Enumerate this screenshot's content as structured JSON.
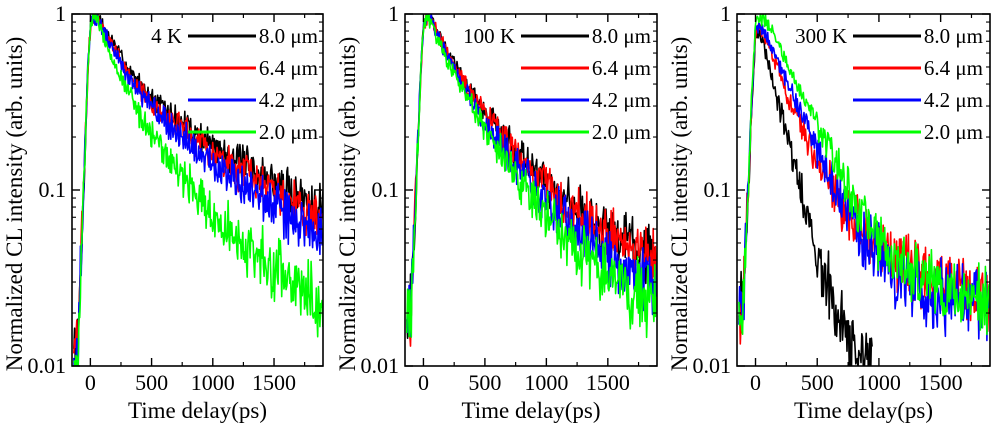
{
  "chart_data": [
    {
      "type": "line",
      "title": "",
      "annotation": "4 K",
      "xlabel": "Time delay(ps)",
      "ylabel": "Normalized CL intensity (arb. units)",
      "xlim": [
        -150,
        1900
      ],
      "ylim": [
        0.01,
        1
      ],
      "yscale": "log",
      "xticks": [
        0,
        500,
        1000,
        1500
      ],
      "xtick_labels": [
        "0",
        "500",
        "1000",
        "1500"
      ],
      "yticks": [
        0.01,
        0.1,
        1
      ],
      "ytick_labels": [
        "0.01",
        "0.1",
        "1"
      ],
      "legend_position": "top-right",
      "series": [
        {
          "name": "8.0 μm",
          "color": "#000000",
          "x": [
            -100,
            -20,
            0,
            30,
            60,
            150,
            300,
            500,
            750,
            1000,
            1250,
            1500,
            1750,
            1900
          ],
          "y": [
            0.013,
            0.5,
            0.85,
            0.97,
            0.95,
            0.75,
            0.5,
            0.33,
            0.24,
            0.18,
            0.14,
            0.11,
            0.09,
            0.082
          ]
        },
        {
          "name": "6.4 μm",
          "color": "#ff0000",
          "x": [
            -100,
            -20,
            0,
            30,
            60,
            150,
            300,
            500,
            750,
            1000,
            1250,
            1500,
            1750,
            1900
          ],
          "y": [
            0.013,
            0.5,
            0.85,
            0.97,
            0.94,
            0.72,
            0.47,
            0.31,
            0.22,
            0.16,
            0.12,
            0.095,
            0.078,
            0.07
          ]
        },
        {
          "name": "4.2 μm",
          "color": "#0000ff",
          "x": [
            -100,
            -20,
            0,
            30,
            60,
            150,
            300,
            500,
            750,
            1000,
            1250,
            1500,
            1750,
            1900
          ],
          "y": [
            0.013,
            0.5,
            0.85,
            0.97,
            0.93,
            0.7,
            0.45,
            0.29,
            0.2,
            0.14,
            0.105,
            0.08,
            0.063,
            0.055
          ]
        },
        {
          "name": "2.0 μm",
          "color": "#00ff00",
          "x": [
            -100,
            -20,
            0,
            30,
            60,
            150,
            300,
            500,
            750,
            1000,
            1250,
            1500,
            1750,
            1900
          ],
          "y": [
            0.013,
            0.5,
            0.85,
            0.97,
            0.9,
            0.62,
            0.36,
            0.2,
            0.12,
            0.075,
            0.05,
            0.036,
            0.027,
            0.023
          ]
        }
      ]
    },
    {
      "type": "line",
      "title": "",
      "annotation": "100 K",
      "xlabel": "Time delay(ps)",
      "ylabel": "Normalized CL intensity (arb. units)",
      "xlim": [
        -150,
        1900
      ],
      "ylim": [
        0.01,
        1
      ],
      "yscale": "log",
      "xticks": [
        0,
        500,
        1000,
        1500
      ],
      "xtick_labels": [
        "0",
        "500",
        "1000",
        "1500"
      ],
      "yticks": [
        0.01,
        0.1,
        1
      ],
      "ytick_labels": [
        "0.01",
        "0.1",
        "1"
      ],
      "legend_position": "top-right",
      "series": [
        {
          "name": "8.0 μm",
          "color": "#000000",
          "x": [
            -100,
            -20,
            0,
            30,
            60,
            150,
            300,
            500,
            750,
            1000,
            1250,
            1500,
            1750,
            1900
          ],
          "y": [
            0.02,
            0.5,
            0.85,
            0.97,
            0.93,
            0.7,
            0.45,
            0.28,
            0.17,
            0.11,
            0.078,
            0.058,
            0.046,
            0.04
          ]
        },
        {
          "name": "6.4 μm",
          "color": "#ff0000",
          "x": [
            -100,
            -20,
            0,
            30,
            60,
            150,
            300,
            500,
            750,
            1000,
            1250,
            1500,
            1750,
            1900
          ],
          "y": [
            0.02,
            0.5,
            0.85,
            0.97,
            0.93,
            0.69,
            0.44,
            0.27,
            0.165,
            0.105,
            0.074,
            0.055,
            0.044,
            0.038
          ]
        },
        {
          "name": "4.2 μm",
          "color": "#0000ff",
          "x": [
            -100,
            -20,
            0,
            30,
            60,
            150,
            300,
            500,
            750,
            1000,
            1250,
            1500,
            1750,
            1900
          ],
          "y": [
            0.02,
            0.5,
            0.85,
            0.97,
            0.92,
            0.66,
            0.41,
            0.24,
            0.14,
            0.085,
            0.058,
            0.042,
            0.033,
            0.029
          ]
        },
        {
          "name": "2.0 μm",
          "color": "#00ff00",
          "x": [
            -100,
            -20,
            0,
            30,
            60,
            150,
            300,
            500,
            750,
            1000,
            1250,
            1500,
            1750,
            1900
          ],
          "y": [
            0.02,
            0.5,
            0.85,
            0.97,
            0.91,
            0.64,
            0.39,
            0.22,
            0.12,
            0.07,
            0.045,
            0.032,
            0.025,
            0.022
          ]
        }
      ]
    },
    {
      "type": "line",
      "title": "",
      "annotation": "300 K",
      "xlabel": "Time delay(ps)",
      "ylabel": "Normalized CL intensity (arb. units)",
      "xlim": [
        -150,
        1900
      ],
      "ylim": [
        0.01,
        1
      ],
      "yscale": "log",
      "xticks": [
        0,
        500,
        1000,
        1500
      ],
      "xtick_labels": [
        "0",
        "500",
        "1000",
        "1500"
      ],
      "yticks": [
        0.01,
        0.1,
        1
      ],
      "ytick_labels": [
        "0.01",
        "0.1",
        "1"
      ],
      "legend_position": "top-right",
      "series": [
        {
          "name": "8.0 μm",
          "color": "#000000",
          "x": [
            -100,
            -20,
            0,
            30,
            60,
            150,
            250,
            350,
            450,
            550,
            650,
            750,
            850,
            950
          ],
          "y": [
            0.022,
            0.4,
            0.75,
            0.8,
            0.7,
            0.4,
            0.2,
            0.11,
            0.06,
            0.035,
            0.021,
            0.014,
            0.011,
            0.0095
          ]
        },
        {
          "name": "6.4 μm",
          "color": "#ff0000",
          "x": [
            -100,
            -20,
            0,
            30,
            60,
            150,
            300,
            500,
            700,
            900,
            1100,
            1300,
            1500,
            1700,
            1900
          ],
          "y": [
            0.022,
            0.45,
            0.78,
            0.85,
            0.78,
            0.55,
            0.3,
            0.15,
            0.08,
            0.055,
            0.042,
            0.035,
            0.03,
            0.027,
            0.025
          ]
        },
        {
          "name": "4.2 μm",
          "color": "#0000ff",
          "x": [
            -100,
            -20,
            0,
            30,
            60,
            150,
            300,
            500,
            700,
            900,
            1100,
            1300,
            1500,
            1700,
            1900
          ],
          "y": [
            0.022,
            0.45,
            0.8,
            0.88,
            0.82,
            0.6,
            0.35,
            0.17,
            0.085,
            0.05,
            0.035,
            0.028,
            0.025,
            0.023,
            0.022
          ]
        },
        {
          "name": "2.0 μm",
          "color": "#00ff00",
          "x": [
            -100,
            -20,
            0,
            30,
            60,
            150,
            300,
            500,
            700,
            900,
            1100,
            1300,
            1500,
            1700,
            1900
          ],
          "y": [
            0.022,
            0.5,
            0.85,
            0.97,
            0.95,
            0.75,
            0.45,
            0.24,
            0.12,
            0.065,
            0.042,
            0.032,
            0.027,
            0.025,
            0.024
          ]
        }
      ]
    }
  ]
}
